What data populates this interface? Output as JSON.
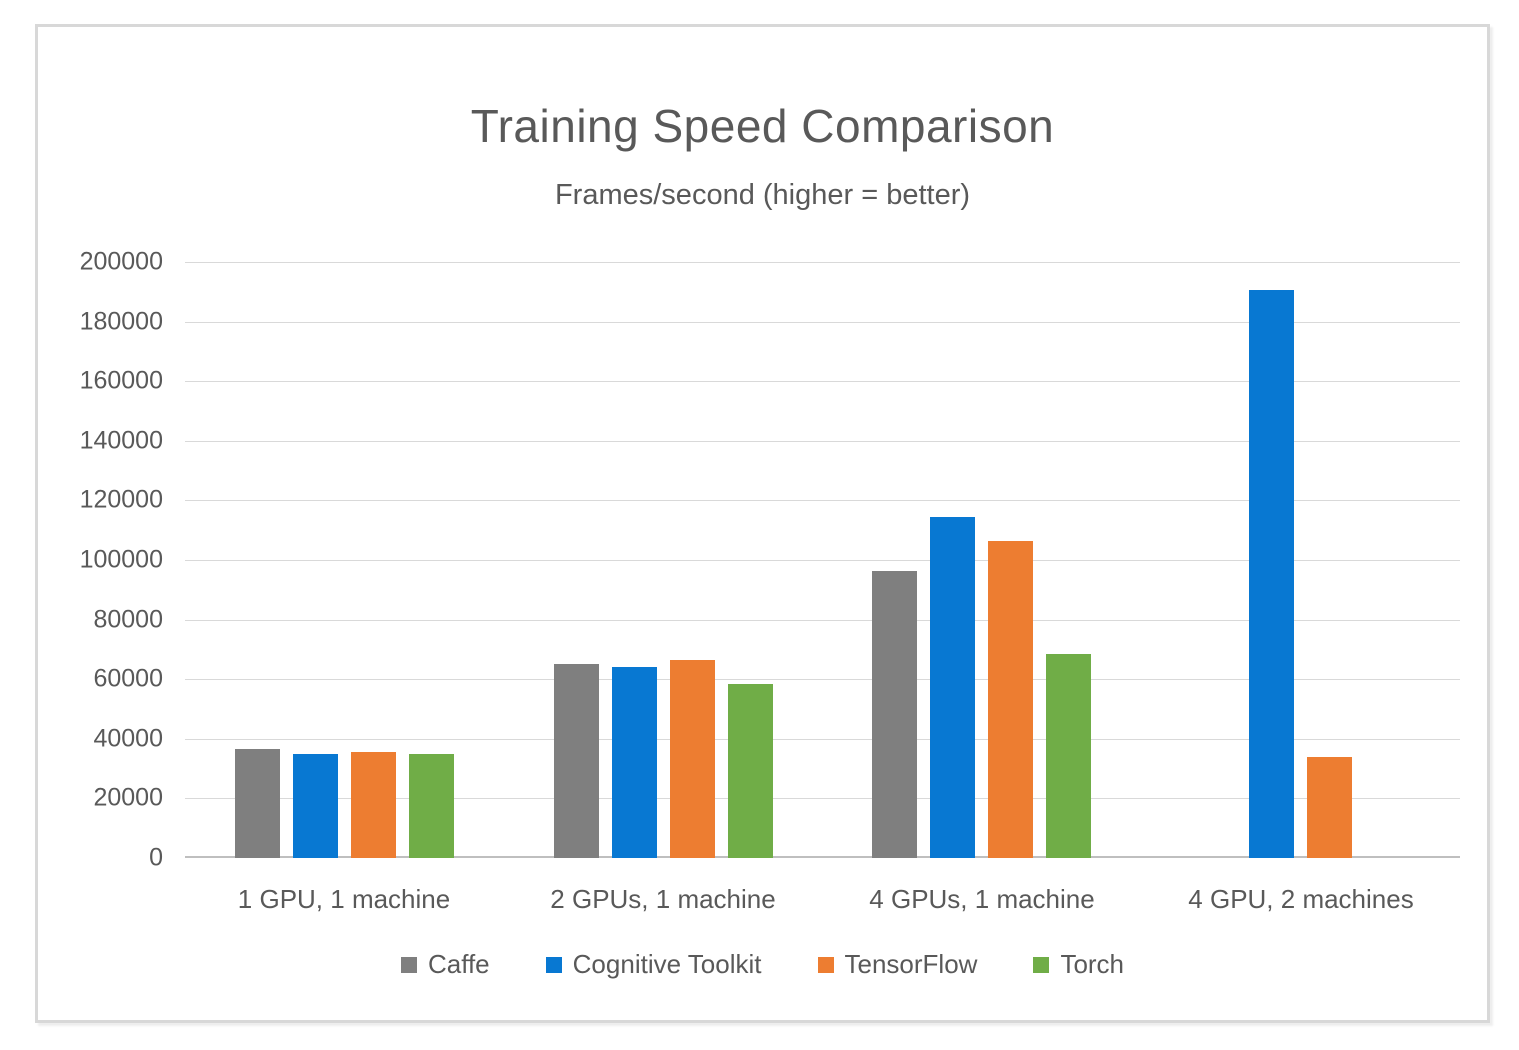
{
  "chart_data": {
    "type": "bar",
    "title": "Training Speed Comparison",
    "subtitle": "Frames/second (higher = better)",
    "categories": [
      "1 GPU, 1 machine",
      "2 GPUs, 1 machine",
      "4 GPUs, 1 machine",
      "4 GPU, 2 machines"
    ],
    "series": [
      {
        "name": "Caffe",
        "color": "#7F7F7F",
        "values": [
          36500,
          65000,
          96300,
          null
        ]
      },
      {
        "name": "Cognitive Toolkit",
        "color": "#0878D2",
        "values": [
          34900,
          64000,
          114300,
          190600
        ]
      },
      {
        "name": "TensorFlow",
        "color": "#ED7D31",
        "values": [
          35700,
          66300,
          106300,
          33800
        ]
      },
      {
        "name": "Torch",
        "color": "#70AD47",
        "values": [
          34900,
          58300,
          68300,
          null
        ]
      }
    ],
    "ylim": [
      0,
      200000
    ],
    "ytick_step": 20000,
    "ytick_labels": [
      "0",
      "20000",
      "40000",
      "60000",
      "80000",
      "100000",
      "120000",
      "140000",
      "160000",
      "180000",
      "200000"
    ],
    "xlabel": "",
    "ylabel": "",
    "grid": true,
    "legend_position": "bottom",
    "colors": {
      "text": "#595959",
      "gridline": "#D9D9D9",
      "axis_line": "#BFBFBF",
      "box_border": "#D8D8D8"
    }
  }
}
